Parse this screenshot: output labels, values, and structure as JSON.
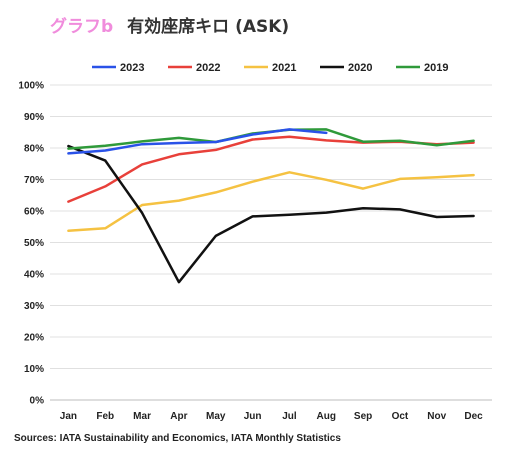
{
  "header": {
    "label": "グラフb",
    "label_color": "#f08cdc",
    "title": "有効座席キロ (ASK)"
  },
  "source": "Sources: IATA Sustainability and Economics, IATA Monthly Statistics",
  "chart_data": {
    "type": "line",
    "categories": [
      "Jan",
      "Feb",
      "Mar",
      "Apr",
      "May",
      "Jun",
      "Jul",
      "Aug",
      "Sep",
      "Oct",
      "Nov",
      "Dec"
    ],
    "ylim": [
      0,
      100
    ],
    "yticks": [
      0,
      10,
      20,
      30,
      40,
      50,
      60,
      70,
      80,
      90,
      100
    ],
    "ytick_labels": [
      "0%",
      "10%",
      "20%",
      "30%",
      "40%",
      "50%",
      "60%",
      "70%",
      "80%",
      "90%",
      "100%"
    ],
    "grid": true,
    "legend_position": "top",
    "series": [
      {
        "name": "2023",
        "color": "#2a52e8",
        "values": [
          78.3,
          79.2,
          81.2,
          81.6,
          81.9,
          84.3,
          85.9,
          84.8,
          null,
          null,
          null,
          null
        ]
      },
      {
        "name": "2022",
        "color": "#e8403a",
        "values": [
          63.0,
          67.8,
          74.8,
          78.0,
          79.4,
          82.7,
          83.6,
          82.4,
          81.7,
          82.0,
          81.2,
          81.7
        ]
      },
      {
        "name": "2021",
        "color": "#f5c242",
        "values": [
          53.7,
          54.5,
          61.9,
          63.3,
          65.9,
          69.3,
          72.3,
          69.9,
          67.1,
          70.2,
          70.7,
          71.4
        ]
      },
      {
        "name": "2020",
        "color": "#111111",
        "values": [
          80.6,
          76.0,
          59.4,
          37.4,
          52.1,
          58.3,
          58.8,
          59.5,
          60.9,
          60.5,
          58.1,
          58.4
        ]
      },
      {
        "name": "2019",
        "color": "#2f9a3a",
        "values": [
          79.8,
          80.7,
          82.1,
          83.2,
          81.9,
          84.6,
          85.8,
          85.9,
          82.0,
          82.3,
          80.9,
          82.3
        ]
      }
    ]
  }
}
